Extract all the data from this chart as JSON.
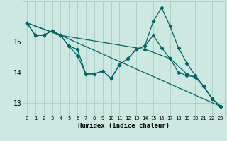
{
  "xlabel": "Humidex (Indice chaleur)",
  "bg_color": "#cce8e0",
  "grid_color": "#aacccc",
  "line_color": "#006666",
  "xlim": [
    -0.5,
    23.5
  ],
  "ylim": [
    12.6,
    16.3
  ],
  "yticks": [
    13,
    14,
    15
  ],
  "xticks": [
    0,
    1,
    2,
    3,
    4,
    5,
    6,
    7,
    8,
    9,
    10,
    11,
    12,
    13,
    14,
    15,
    16,
    17,
    18,
    19,
    20,
    21,
    22,
    23
  ],
  "line1_x": [
    0,
    1,
    2,
    3,
    4,
    5,
    6,
    7,
    8,
    9,
    10,
    11,
    12,
    13,
    14,
    15,
    16,
    17,
    18,
    19,
    20,
    21,
    22,
    23
  ],
  "line1_y": [
    15.6,
    15.2,
    15.2,
    15.35,
    15.2,
    14.85,
    14.75,
    13.95,
    13.95,
    14.05,
    13.8,
    14.25,
    14.45,
    14.75,
    14.85,
    15.65,
    16.1,
    15.5,
    14.8,
    14.3,
    13.9,
    13.55,
    13.15,
    12.9
  ],
  "line2_x": [
    0,
    1,
    2,
    3,
    4,
    5,
    6,
    7,
    8,
    9,
    10,
    11,
    12,
    13,
    14,
    15,
    16,
    17,
    18,
    19,
    20,
    21,
    22,
    23
  ],
  "line2_y": [
    15.6,
    15.2,
    15.2,
    15.35,
    15.2,
    14.85,
    14.55,
    13.95,
    13.95,
    14.05,
    13.8,
    14.25,
    14.45,
    14.75,
    14.85,
    15.2,
    14.8,
    14.45,
    14.0,
    13.9,
    13.85,
    13.55,
    13.15,
    12.9
  ],
  "line3_x": [
    0,
    4,
    23
  ],
  "line3_y": [
    15.6,
    15.2,
    12.9
  ],
  "line4_x": [
    0,
    4,
    14,
    17,
    19,
    20,
    21,
    22,
    23
  ],
  "line4_y": [
    15.6,
    15.2,
    14.75,
    14.45,
    13.95,
    13.85,
    13.55,
    13.15,
    12.9
  ]
}
